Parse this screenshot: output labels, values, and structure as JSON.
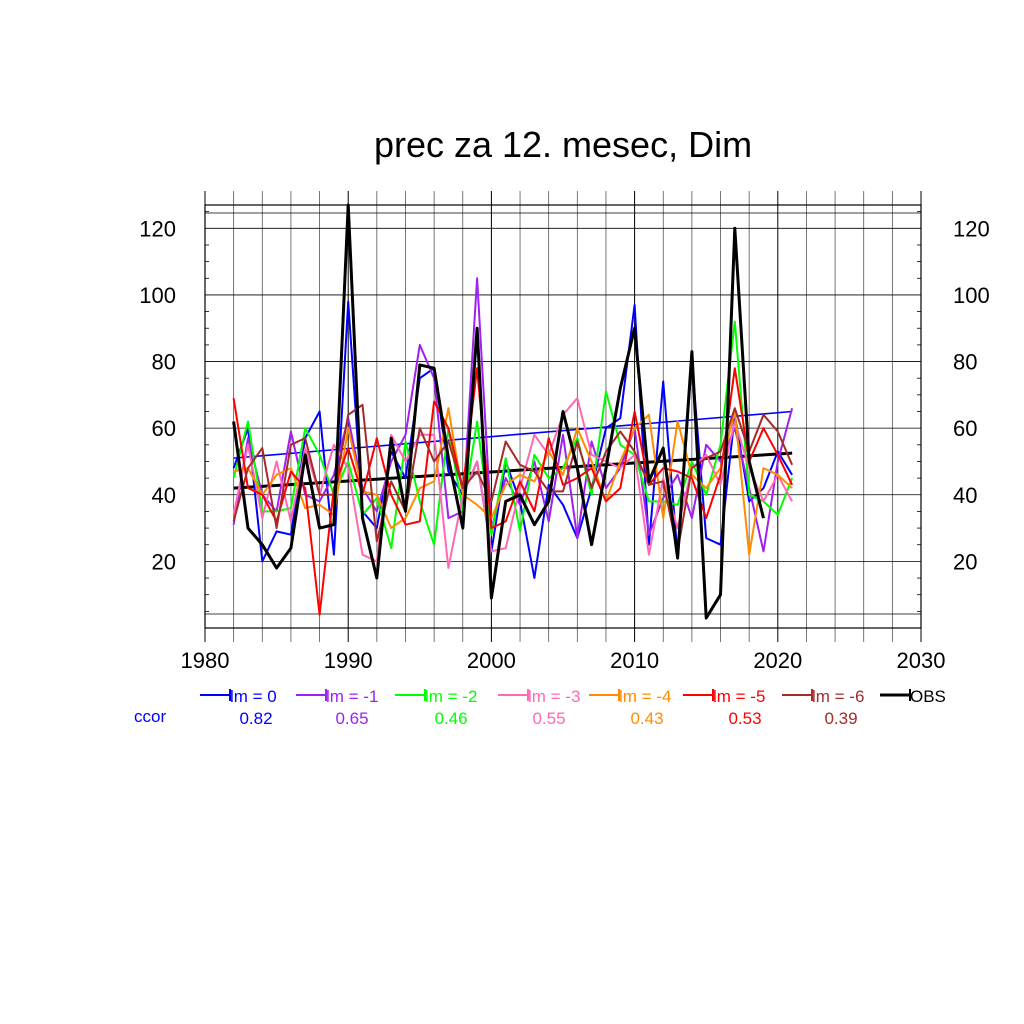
{
  "chart_data": {
    "type": "line",
    "title": "prec za 12. mesec, Dim",
    "xlabel": "",
    "ylabel": "",
    "xlim": [
      1980,
      2030
    ],
    "ylim": [
      0,
      127
    ],
    "x_ticks": [
      1980,
      1990,
      2000,
      2010,
      2020,
      2030
    ],
    "y_ticks": [
      20,
      40,
      60,
      80,
      100,
      120
    ],
    "grid": true,
    "legend_position": "bottom",
    "ccor_label": "ccor",
    "ccor_color": "#0000ff",
    "x": [
      1982,
      1983,
      1984,
      1985,
      1986,
      1987,
      1988,
      1989,
      1990,
      1991,
      1992,
      1993,
      1994,
      1995,
      1996,
      1997,
      1998,
      1999,
      2000,
      2001,
      2002,
      2003,
      2004,
      2005,
      2006,
      2007,
      2008,
      2009,
      2010,
      2011,
      2012,
      2013,
      2014,
      2015,
      2016,
      2017,
      2018,
      2019,
      2020,
      2021
    ],
    "series": [
      {
        "name": "lm = 0",
        "color": "#0000ff",
        "ccor": "0.82",
        "trend": [
          51,
          65
        ],
        "values": [
          48,
          60,
          20,
          29,
          28,
          57,
          65,
          22,
          98,
          35,
          30,
          53,
          45,
          75,
          78,
          47,
          40,
          50,
          23,
          50,
          38,
          15,
          43,
          37,
          27,
          42,
          60,
          63,
          97,
          25,
          74,
          22,
          80,
          27,
          25,
          64,
          38,
          42,
          53,
          46
        ]
      },
      {
        "name": "lm = -1",
        "color": "#a020f0",
        "ccor": "0.65",
        "trend": null,
        "values": [
          31,
          57,
          40,
          35,
          59,
          40,
          38,
          46,
          63,
          42,
          35,
          50,
          58,
          85,
          75,
          33,
          35,
          105,
          30,
          45,
          37,
          50,
          32,
          58,
          27,
          56,
          42,
          48,
          60,
          28,
          39,
          46,
          33,
          55,
          50,
          60,
          42,
          23,
          50,
          66
        ]
      },
      {
        "name": "lm = -2",
        "color": "#00ff00",
        "ccor": "0.46",
        "trend": null,
        "values": [
          45,
          62,
          35,
          35,
          36,
          60,
          52,
          40,
          50,
          34,
          39,
          24,
          56,
          38,
          25,
          60,
          35,
          62,
          28,
          51,
          29,
          52,
          45,
          48,
          57,
          40,
          71,
          55,
          52,
          38,
          38,
          37,
          50,
          40,
          55,
          92,
          40,
          38,
          34,
          45
        ]
      },
      {
        "name": "lm = -3",
        "color": "#ff69b4",
        "ccor": "0.55",
        "trend": null,
        "values": [
          34,
          55,
          33,
          50,
          32,
          54,
          40,
          55,
          48,
          22,
          20,
          58,
          50,
          58,
          58,
          18,
          40,
          50,
          23,
          24,
          42,
          58,
          52,
          64,
          69,
          52,
          50,
          48,
          52,
          22,
          45,
          30,
          48,
          52,
          43,
          62,
          48,
          38,
          46,
          38
        ]
      },
      {
        "name": "lm = -4",
        "color": "#ff8c00",
        "ccor": "0.43",
        "trend": null,
        "values": [
          47,
          48,
          40,
          46,
          48,
          36,
          37,
          34,
          60,
          41,
          40,
          30,
          33,
          42,
          44,
          66,
          40,
          37,
          33,
          43,
          46,
          44,
          53,
          46,
          60,
          50,
          38,
          50,
          60,
          64,
          33,
          62,
          46,
          42,
          48,
          65,
          22,
          48,
          46,
          42
        ]
      },
      {
        "name": "lm = -5",
        "color": "#ff0000",
        "ccor": "0.53",
        "trend": null,
        "values": [
          69,
          42,
          40,
          32,
          47,
          42,
          4,
          42,
          54,
          40,
          57,
          40,
          31,
          32,
          68,
          60,
          42,
          78,
          30,
          32,
          44,
          35,
          57,
          43,
          45,
          48,
          38,
          42,
          65,
          43,
          48,
          47,
          45,
          33,
          46,
          78,
          50,
          60,
          52,
          43
        ]
      },
      {
        "name": "lm = -6",
        "color": "#a52a2a",
        "ccor": "0.39",
        "trend": null,
        "values": [
          32,
          48,
          54,
          30,
          55,
          57,
          40,
          40,
          64,
          67,
          26,
          44,
          35,
          60,
          50,
          56,
          42,
          47,
          38,
          56,
          49,
          47,
          41,
          41,
          56,
          42,
          53,
          59,
          53,
          43,
          44,
          23,
          48,
          51,
          53,
          66,
          53,
          64,
          59,
          49
        ]
      },
      {
        "name": "OBS",
        "color": "#000000",
        "ccor": "",
        "trend": [
          42,
          52.5
        ],
        "values": [
          62,
          30,
          25,
          18,
          24,
          52,
          30,
          31,
          127,
          33,
          15,
          57,
          35,
          79,
          78,
          51,
          30,
          90,
          9,
          38,
          40,
          31,
          38,
          65,
          48,
          25,
          48,
          72,
          90,
          44,
          54,
          21,
          83,
          3,
          10,
          120,
          50,
          33,
          null,
          null
        ]
      }
    ]
  }
}
